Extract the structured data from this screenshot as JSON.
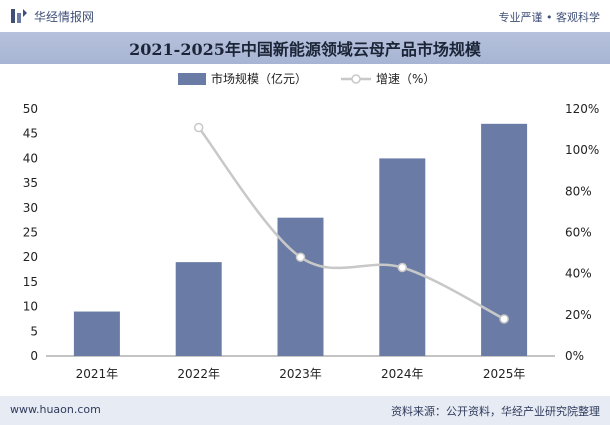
{
  "header": {
    "brand": "华经情报网",
    "slogan": "专业严谨 • 客观科学"
  },
  "footer": {
    "url": "www.huaon.com",
    "source": "资料来源：公开资料，华经产业研究院整理"
  },
  "colors": {
    "bar": "#6a7ca6",
    "line": "#c8c8c8",
    "axis_text": "#222222",
    "brand": "#3f4f78"
  },
  "chart_data": {
    "type": "bar",
    "title": "2021-2025年中国新能源领域云母产品市场规模",
    "categories": [
      "2021年",
      "2022年",
      "2023年",
      "2024年",
      "2025年"
    ],
    "series": [
      {
        "name": "市场规模（亿元）",
        "type": "bar",
        "axis": "left",
        "values": [
          9,
          19,
          28,
          40,
          47
        ]
      },
      {
        "name": "增速（%）",
        "type": "line",
        "axis": "right",
        "values": [
          null,
          111,
          48,
          43,
          18
        ]
      }
    ],
    "y_left": {
      "min": 0,
      "max": 50,
      "ticks": [
        "0",
        "5",
        "10",
        "15",
        "20",
        "25",
        "30",
        "35",
        "40",
        "45",
        "50"
      ]
    },
    "y_right": {
      "min": 0,
      "max": 120,
      "ticks": [
        "0%",
        "20%",
        "40%",
        "60%",
        "80%",
        "100%",
        "120%"
      ]
    },
    "legend_position": "top-center",
    "grid": false
  }
}
